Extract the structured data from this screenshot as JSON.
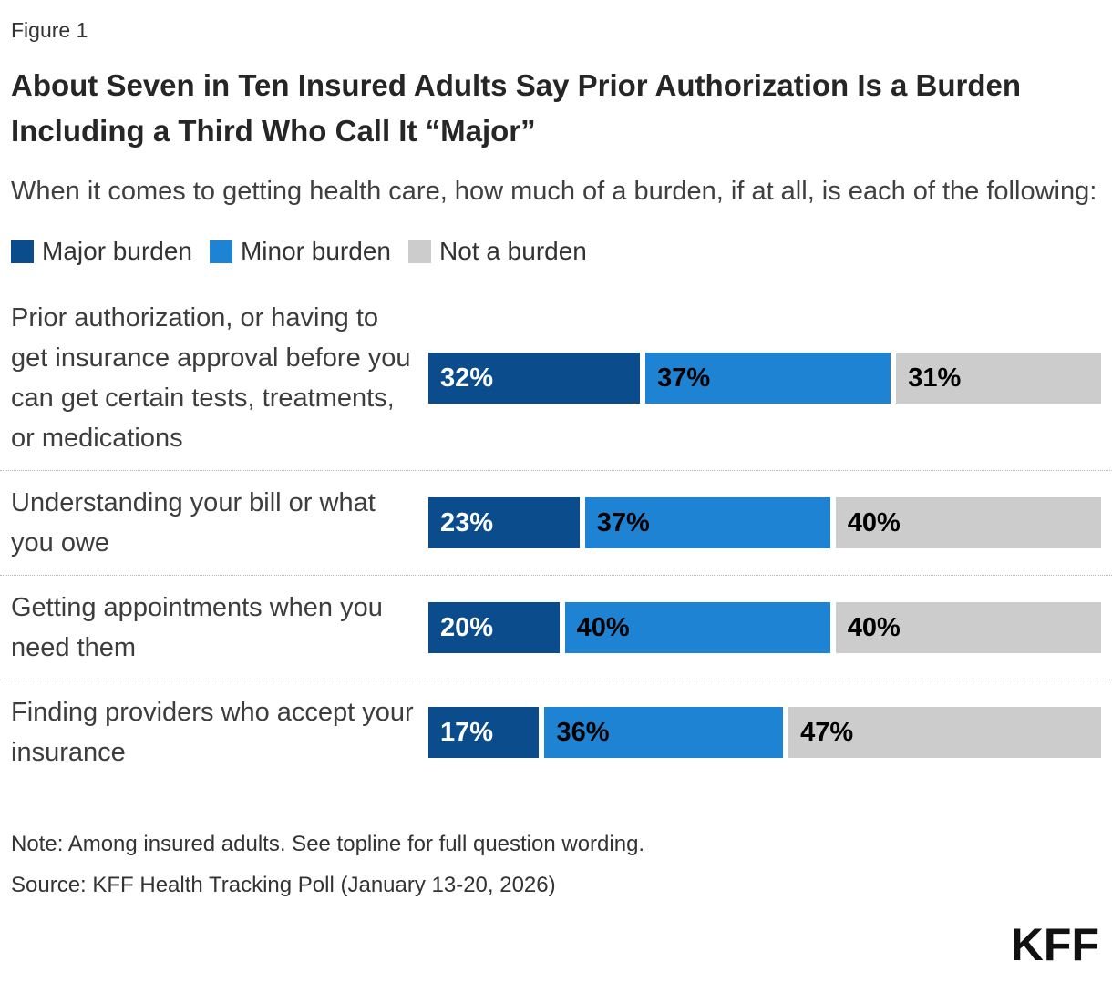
{
  "figure_label": "Figure 1",
  "title": "About Seven in Ten Insured Adults Say Prior Authorization Is a Burden Including a Third Who Call It “Major”",
  "subtitle": "When it comes to getting health care, how much of a burden, if at all, is each of the following:",
  "chart_data": {
    "type": "bar",
    "orientation": "horizontal-stacked",
    "value_suffix": "%",
    "categories": [
      "Prior authorization, or having to get insurance approval before you can get certain tests, treatments, or medications",
      "Understanding your bill or what you owe",
      "Getting appointments when you need them",
      "Finding providers who accept your insurance"
    ],
    "series": [
      {
        "name": "Major burden",
        "color": "#0B4D8C",
        "text_color": "#ffffff",
        "values": [
          32,
          23,
          20,
          17
        ]
      },
      {
        "name": "Minor burden",
        "color": "#1F83D4",
        "text_color": "#000000",
        "values": [
          37,
          37,
          40,
          36
        ]
      },
      {
        "name": "Not a burden",
        "color": "#CCCCCC",
        "text_color": "#000000",
        "values": [
          31,
          40,
          40,
          47
        ]
      }
    ],
    "legend_position": "top-left",
    "grid": false,
    "xlim": [
      0,
      100
    ]
  },
  "note": "Note: Among insured adults. See topline for full question wording.",
  "source": "Source: KFF Health Tracking Poll (January 13-20, 2026)",
  "logo_text": "KFF"
}
